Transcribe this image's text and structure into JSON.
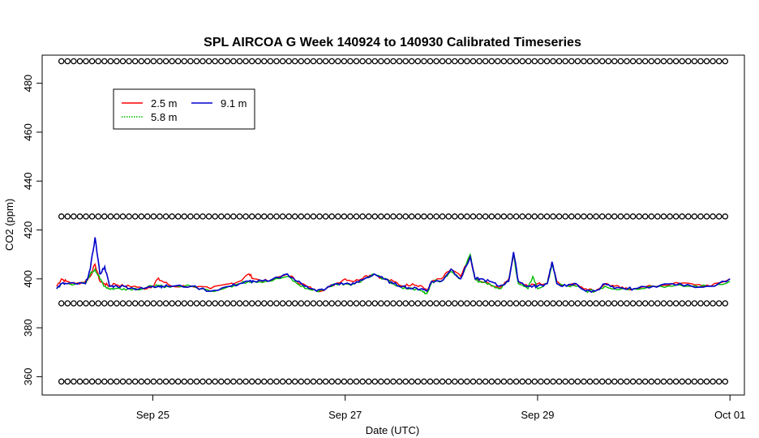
{
  "chart_data": {
    "type": "line",
    "title": "SPL AIRCOA G  Week 140924 to 140930  Calibrated Timeseries",
    "xlabel": "Date (UTC)",
    "ylabel": "CO2 (ppm)",
    "x_unit": "days since 2014-09-24 00:00 UTC",
    "xlim": [
      -0.15,
      7.15
    ],
    "ylim": [
      352.5,
      491.5
    ],
    "x_ticks": [
      {
        "x": 1,
        "label": "Sep 25"
      },
      {
        "x": 3,
        "label": "Sep 27"
      },
      {
        "x": 5,
        "label": "Sep 29"
      },
      {
        "x": 7,
        "label": "Oct 01"
      }
    ],
    "y_ticks": [
      360,
      380,
      400,
      420,
      440,
      460,
      480
    ],
    "grid": false,
    "legend": {
      "position": "top-left",
      "entries": [
        {
          "label": "2.5 m",
          "color": "#ff0000",
          "style": "solid"
        },
        {
          "label": "9.1 m",
          "color": "#0000cc",
          "style": "solid"
        },
        {
          "label": "5.8 m",
          "color": "#00bb00",
          "style": "dotted"
        }
      ]
    },
    "series": [
      {
        "name": "2.5 m",
        "color": "#ff0000",
        "x": [
          0,
          0.05,
          0.1,
          0.2,
          0.3,
          0.35,
          0.4,
          0.45,
          0.5,
          0.55,
          0.6,
          0.7,
          0.8,
          0.9,
          1.0,
          1.05,
          1.1,
          1.2,
          1.4,
          1.6,
          1.8,
          1.9,
          2.0,
          2.05,
          2.2,
          2.4,
          2.5,
          2.6,
          2.7,
          2.8,
          2.9,
          3.0,
          3.1,
          3.2,
          3.3,
          3.4,
          3.5,
          3.6,
          3.7,
          3.8,
          3.85,
          3.9,
          4.0,
          4.1,
          4.2,
          4.3,
          4.35,
          4.4,
          4.5,
          4.6,
          4.7,
          4.75,
          4.8,
          4.9,
          5.0,
          5.1,
          5.15,
          5.2,
          5.3,
          5.4,
          5.5,
          5.6,
          5.7,
          5.8,
          5.9,
          6.0,
          6.2,
          6.4,
          6.6,
          6.8,
          7.0
        ],
        "y": [
          397,
          400,
          399,
          398,
          399,
          401,
          406,
          399,
          398,
          397,
          398,
          397,
          397,
          396,
          397,
          400,
          399,
          397,
          397,
          396,
          398,
          399,
          402,
          400,
          399,
          402,
          399,
          397,
          395,
          396,
          398,
          400,
          399,
          401,
          402,
          400,
          399,
          397,
          398,
          397,
          395,
          399,
          400,
          404,
          401,
          409,
          400,
          399,
          398,
          396,
          400,
          410,
          399,
          397,
          398,
          398,
          407,
          399,
          397,
          398,
          396,
          395,
          398,
          397,
          396,
          396,
          397,
          398,
          398,
          397,
          400
        ]
      },
      {
        "name": "5.8 m",
        "color": "#00bb00",
        "x": [
          0,
          0.05,
          0.1,
          0.2,
          0.3,
          0.35,
          0.4,
          0.45,
          0.5,
          0.55,
          0.6,
          0.7,
          0.8,
          0.9,
          1.0,
          1.05,
          1.1,
          1.2,
          1.4,
          1.6,
          1.8,
          1.9,
          2.0,
          2.05,
          2.2,
          2.4,
          2.5,
          2.6,
          2.7,
          2.8,
          2.9,
          3.0,
          3.1,
          3.2,
          3.3,
          3.4,
          3.5,
          3.6,
          3.7,
          3.8,
          3.85,
          3.9,
          4.0,
          4.1,
          4.2,
          4.3,
          4.35,
          4.4,
          4.5,
          4.6,
          4.7,
          4.75,
          4.8,
          4.9,
          4.95,
          5.0,
          5.1,
          5.15,
          5.2,
          5.3,
          5.4,
          5.5,
          5.6,
          5.7,
          5.8,
          5.9,
          6.0,
          6.2,
          6.4,
          6.6,
          6.8,
          7.0
        ],
        "y": [
          396,
          398,
          398,
          398,
          398,
          402,
          404,
          400,
          397,
          396,
          396,
          396,
          396,
          396,
          397,
          397,
          397,
          397,
          397,
          395,
          397,
          398,
          399,
          399,
          399,
          401,
          398,
          396,
          395,
          396,
          398,
          398,
          398,
          400,
          402,
          400,
          398,
          396,
          396,
          395,
          394,
          399,
          399,
          403,
          400,
          410,
          400,
          399,
          398,
          396,
          399,
          410,
          398,
          396,
          401,
          396,
          398,
          406,
          398,
          397,
          397,
          395,
          395,
          397,
          396,
          396,
          396,
          397,
          397,
          397,
          397,
          399
        ]
      },
      {
        "name": "9.1 m",
        "color": "#0000cc",
        "x": [
          0,
          0.05,
          0.1,
          0.2,
          0.3,
          0.35,
          0.4,
          0.45,
          0.5,
          0.55,
          0.6,
          0.7,
          0.8,
          0.9,
          1.0,
          1.05,
          1.1,
          1.2,
          1.4,
          1.6,
          1.8,
          1.9,
          2.0,
          2.05,
          2.2,
          2.4,
          2.5,
          2.6,
          2.7,
          2.8,
          2.9,
          3.0,
          3.1,
          3.2,
          3.3,
          3.4,
          3.5,
          3.6,
          3.7,
          3.8,
          3.85,
          3.9,
          4.0,
          4.1,
          4.2,
          4.3,
          4.35,
          4.4,
          4.5,
          4.6,
          4.7,
          4.75,
          4.8,
          4.9,
          4.95,
          5.0,
          5.1,
          5.15,
          5.2,
          5.3,
          5.4,
          5.5,
          5.6,
          5.7,
          5.8,
          5.9,
          6.0,
          6.2,
          6.4,
          6.6,
          6.8,
          7.0
        ],
        "y": [
          396,
          398,
          398,
          398,
          398,
          404,
          417,
          402,
          405,
          397,
          397,
          397,
          396,
          396,
          397,
          397,
          397,
          397,
          397,
          395,
          397,
          398,
          399,
          399,
          399,
          402,
          399,
          397,
          395,
          396,
          398,
          398,
          398,
          400,
          402,
          400,
          398,
          397,
          396,
          396,
          395,
          399,
          399,
          404,
          400,
          409,
          400,
          400,
          399,
          397,
          399,
          411,
          399,
          397,
          397,
          397,
          398,
          407,
          398,
          397,
          398,
          395,
          395,
          398,
          396,
          396,
          396,
          397,
          398,
          397,
          397,
          400
        ]
      }
    ],
    "marker_rows": [
      {
        "y": 489,
        "symbol": "o",
        "x_start": 0.05,
        "x_end": 6.95
      },
      {
        "y": 425.5,
        "symbol": "o",
        "x_start": 0.05,
        "x_end": 6.95
      },
      {
        "y": 390,
        "symbol": "o",
        "x_start": 0.05,
        "x_end": 6.95
      },
      {
        "y": 358,
        "symbol": "o",
        "x_start": 0.05,
        "x_end": 6.95
      }
    ]
  }
}
